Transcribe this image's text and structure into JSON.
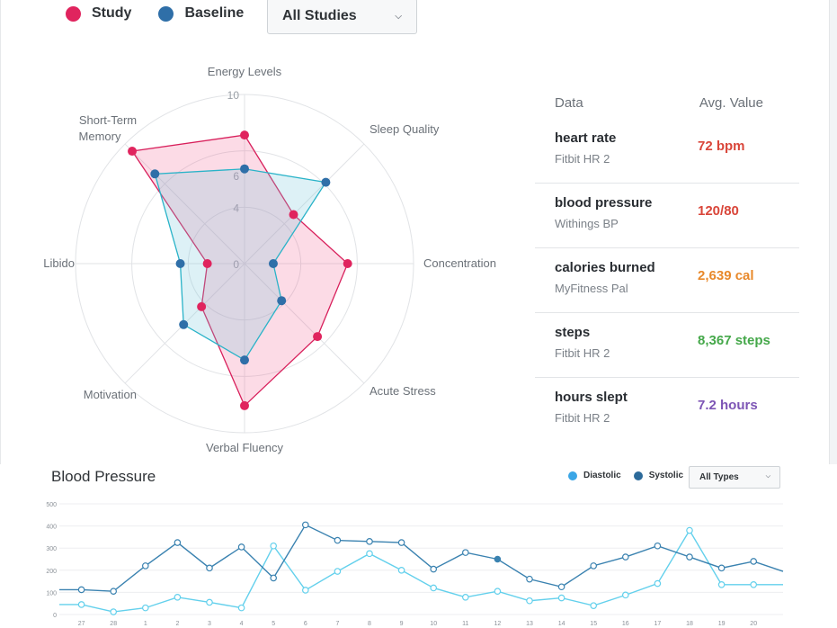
{
  "legend": {
    "study": {
      "label": "Study",
      "color": "#e0245e"
    },
    "baseline": {
      "label": "Baseline",
      "color": "#2f6fa8"
    }
  },
  "filter": {
    "selected": "All Studies"
  },
  "chart_data": [
    {
      "type": "radar",
      "axes": [
        "Energy Levels",
        "Sleep Quality",
        "Concentration",
        "Acute Stress",
        "Verbal Fluency",
        "Motivation",
        "Libido",
        "Short-Term Memory"
      ],
      "rticks": [
        "0",
        "4",
        "6",
        "10"
      ],
      "rmax": 10,
      "series": [
        {
          "name": "Study",
          "color": "#e0245e",
          "values": [
            7.6,
            4.1,
            6.1,
            6.1,
            8.4,
            3.6,
            2.2,
            9.4
          ]
        },
        {
          "name": "Baseline",
          "color": "#2f6fa8",
          "values": [
            5.6,
            6.8,
            1.7,
            3.1,
            5.7,
            5.1,
            3.8,
            7.5
          ]
        }
      ]
    },
    {
      "type": "line",
      "title": "Blood Pressure",
      "ylim": [
        0,
        500
      ],
      "yticks": [
        "0",
        "100",
        "200",
        "300",
        "400",
        "500"
      ],
      "categories": [
        "27",
        "28",
        "1",
        "2",
        "3",
        "4",
        "5",
        "6",
        "7",
        "8",
        "9",
        "10",
        "11",
        "12",
        "13",
        "14",
        "15",
        "16",
        "17",
        "18",
        "19",
        "20"
      ],
      "series": [
        {
          "name": "Diastolic",
          "color": "#4fc6e6",
          "values": [
            45,
            12,
            30,
            78,
            55,
            30,
            310,
            110,
            195,
            275,
            200,
            120,
            78,
            105,
            62,
            75,
            40,
            88,
            140,
            380,
            135,
            135
          ]
        },
        {
          "name": "Systolic",
          "color": "#3f86b4",
          "values": [
            112,
            105,
            220,
            325,
            210,
            305,
            165,
            405,
            335,
            330,
            325,
            205,
            280,
            250,
            160,
            125,
            220,
            260,
            310,
            260,
            210,
            240
          ]
        }
      ]
    }
  ],
  "table": {
    "header": {
      "data": "Data",
      "value": "Avg. Value"
    },
    "rows": [
      {
        "name": "heart rate",
        "source": "Fitbit HR 2",
        "value": "72 bpm",
        "color": "#d9463a"
      },
      {
        "name": "blood pressure",
        "source": "Withings BP",
        "value": "120/80",
        "color": "#d9463a"
      },
      {
        "name": "calories burned",
        "source": "MyFitness Pal",
        "value": "2,639 cal",
        "color": "#e8892b"
      },
      {
        "name": "steps",
        "source": "Fitbit HR 2",
        "value": "8,367 steps",
        "color": "#45a84a"
      },
      {
        "name": "hours slept",
        "source": "Fitbit HR 2",
        "value": "7.2 hours",
        "color": "#7d55b5"
      }
    ]
  },
  "bp": {
    "title": "Blood Pressure",
    "legend": [
      {
        "label": "Diastolic",
        "color": "#3ba6e6"
      },
      {
        "label": "Systolic",
        "color": "#2c6a9a"
      }
    ],
    "select": "All Types"
  }
}
